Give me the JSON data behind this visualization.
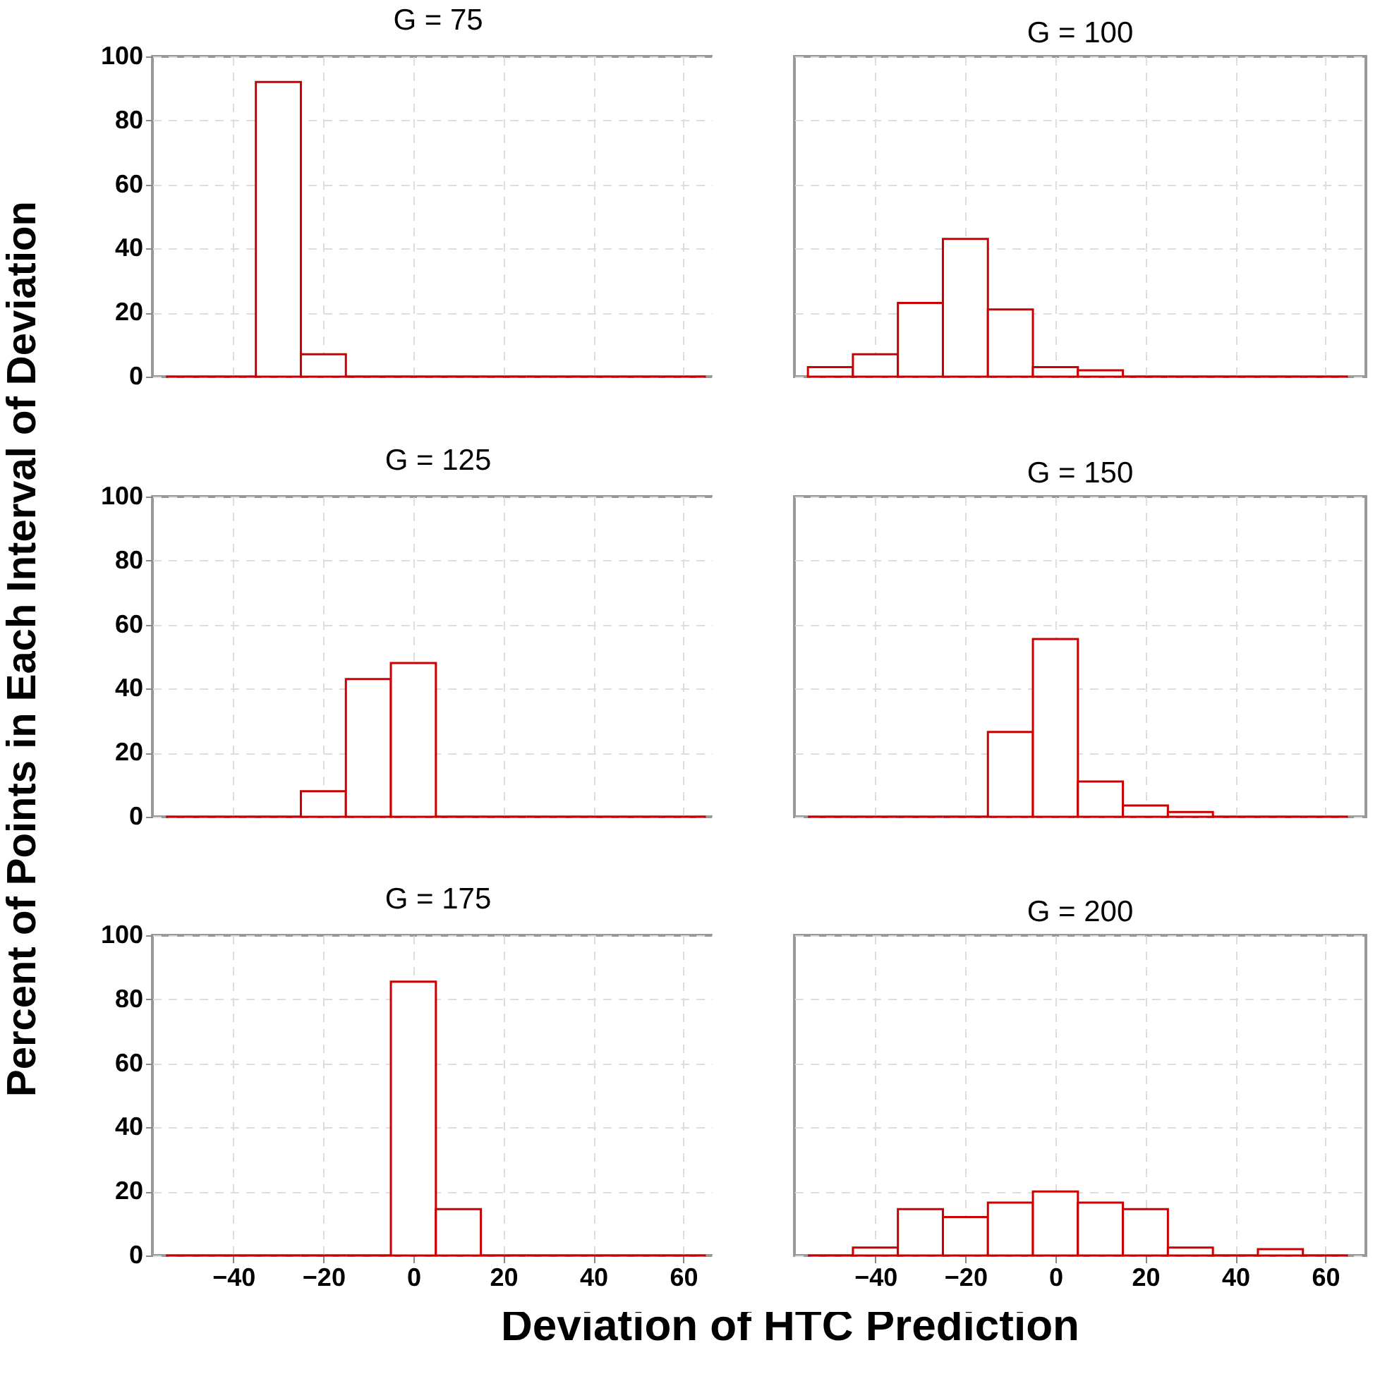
{
  "chart_data": [
    {
      "type": "histogram",
      "title": "G = 75",
      "ylabel": "Percent of Points in Each Interval of Deviation",
      "bins": [
        -55,
        -45,
        -35,
        -25,
        -15,
        -5,
        5,
        15,
        25,
        35,
        45,
        55,
        65
      ],
      "values": [
        0,
        0,
        92,
        7,
        0,
        0,
        0,
        0,
        0,
        0,
        0,
        0
      ],
      "color": "#cc0000",
      "xlim": [
        -58,
        69
      ],
      "ylim": [
        0,
        100
      ],
      "xticks": [
        -40,
        -20,
        0,
        20,
        40,
        60
      ],
      "yticks": [
        0,
        20,
        40,
        60,
        80,
        100
      ],
      "grid": true,
      "tick_labels": "y"
    },
    {
      "type": "histogram",
      "title": "G = 100",
      "bins": [
        -55,
        -45,
        -35,
        -25,
        -15,
        -5,
        5,
        15,
        25,
        35,
        45,
        55,
        65
      ],
      "values": [
        3,
        7,
        23,
        43,
        21,
        3,
        2,
        0,
        0,
        0,
        0,
        0
      ],
      "color": "#cc0000",
      "xlim": [
        -58,
        69
      ],
      "ylim": [
        0,
        100
      ],
      "xticks": [
        -40,
        -20,
        0,
        20,
        40,
        60
      ],
      "yticks": [
        0,
        20,
        40,
        60,
        80,
        100
      ],
      "grid": true,
      "tick_labels": false
    },
    {
      "type": "histogram",
      "title": "G = 125",
      "bins": [
        -55,
        -45,
        -35,
        -25,
        -15,
        -5,
        5,
        15,
        25,
        35,
        45,
        55,
        65
      ],
      "values": [
        0,
        0,
        0,
        8,
        43,
        48,
        0,
        0,
        0,
        0,
        0,
        0
      ],
      "color": "#cc0000",
      "xlim": [
        -58,
        69
      ],
      "ylim": [
        0,
        100
      ],
      "xticks": [
        -40,
        -20,
        0,
        20,
        40,
        60
      ],
      "yticks": [
        0,
        20,
        40,
        60,
        80,
        100
      ],
      "grid": true,
      "tick_labels": "y"
    },
    {
      "type": "histogram",
      "title": "G = 150",
      "bins": [
        -55,
        -45,
        -35,
        -25,
        -15,
        -5,
        5,
        15,
        25,
        35,
        45,
        55,
        65
      ],
      "values": [
        0,
        0,
        0,
        0,
        26.5,
        55.5,
        11,
        3.5,
        1.5,
        0,
        0,
        0
      ],
      "color": "#cc0000",
      "xlim": [
        -58,
        69
      ],
      "ylim": [
        0,
        100
      ],
      "xticks": [
        -40,
        -20,
        0,
        20,
        40,
        60
      ],
      "yticks": [
        0,
        20,
        40,
        60,
        80,
        100
      ],
      "grid": true,
      "tick_labels": false
    },
    {
      "type": "histogram",
      "title": "G = 175",
      "bins": [
        -55,
        -45,
        -35,
        -25,
        -15,
        -5,
        5,
        15,
        25,
        35,
        45,
        55,
        65
      ],
      "values": [
        0,
        0,
        0,
        0,
        0,
        85.5,
        14.5,
        0,
        0,
        0,
        0,
        0
      ],
      "color": "#cc0000",
      "xlim": [
        -58,
        69
      ],
      "ylim": [
        0,
        100
      ],
      "xticks": [
        -40,
        -20,
        0,
        20,
        40,
        60
      ],
      "yticks": [
        0,
        20,
        40,
        60,
        80,
        100
      ],
      "grid": true
    },
    {
      "type": "histogram",
      "title": "G = 200",
      "xlabel": "Deviation of HTC Prediction",
      "bins": [
        -55,
        -45,
        -35,
        -25,
        -15,
        -5,
        5,
        15,
        25,
        35,
        45,
        55,
        65
      ],
      "values": [
        0,
        2.5,
        14.5,
        12,
        16.5,
        20,
        16.5,
        14.5,
        2.5,
        0,
        2,
        0
      ],
      "color": "#cc0000",
      "xlim": [
        -58,
        69
      ],
      "ylim": [
        0,
        100
      ],
      "xticks": [
        -40,
        -20,
        0,
        20,
        40,
        60
      ],
      "yticks": [
        0,
        20,
        40,
        60,
        80,
        100
      ],
      "grid": true,
      "tick_labels": "x"
    }
  ]
}
